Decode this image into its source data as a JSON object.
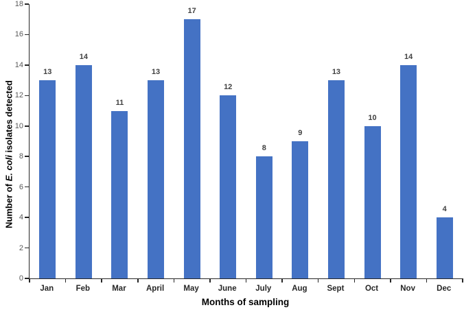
{
  "chart_data": {
    "type": "bar",
    "title": "",
    "categories": [
      "Jan",
      "Feb",
      "Mar",
      "April",
      "May",
      "June",
      "July",
      "Aug",
      "Sept",
      "Oct",
      "Nov",
      "Dec"
    ],
    "values": [
      13,
      14,
      11,
      13,
      17,
      12,
      8,
      9,
      13,
      10,
      14,
      4
    ],
    "xlabel": "Months of sampling",
    "ylabel": "Number of E. coli isolates detected",
    "ylabel_parts": {
      "prefix": "Number of ",
      "italic": "E. coli",
      "suffix": " isolates detected"
    },
    "ylim": [
      0,
      18
    ],
    "y_ticks": [
      0,
      2,
      4,
      6,
      8,
      10,
      12,
      14,
      16,
      18
    ],
    "grid": "off",
    "legend": "none",
    "data_labels": true,
    "colors": {
      "bar": "#4472C4",
      "data_label": "#404040",
      "tick_label": "#595959",
      "category_label": "#262626",
      "axis_title": "#000000",
      "axis_line": "#262626",
      "background": "#ffffff"
    }
  }
}
